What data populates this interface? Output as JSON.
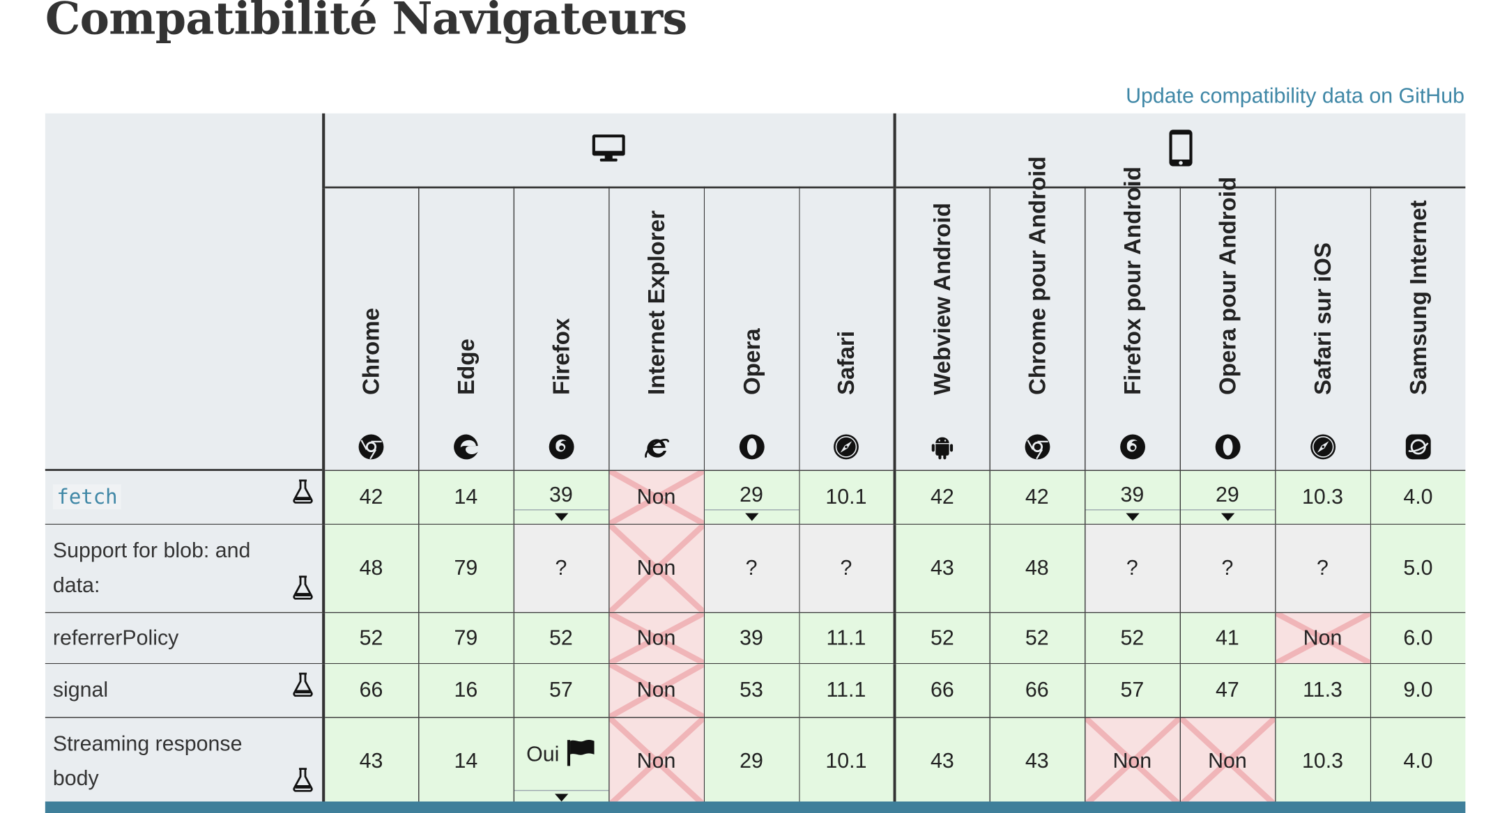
{
  "page": {
    "title": "Compatibilité Navigateurs",
    "github_link": "Update compatibility data on GitHub"
  },
  "groups": [
    {
      "name": "desktop",
      "icon": "desktop-icon"
    },
    {
      "name": "mobile",
      "icon": "mobile-phone-icon"
    }
  ],
  "browsers": [
    {
      "name": "Chrome",
      "icon": "chrome-icon"
    },
    {
      "name": "Edge",
      "icon": "edge-icon"
    },
    {
      "name": "Firefox",
      "icon": "firefox-icon"
    },
    {
      "name": "Internet Explorer",
      "icon": "internet-explorer-icon"
    },
    {
      "name": "Opera",
      "icon": "opera-icon"
    },
    {
      "name": "Safari",
      "icon": "safari-icon"
    },
    {
      "name": "Webview Android",
      "icon": "android-icon"
    },
    {
      "name": "Chrome pour Android",
      "icon": "chrome-icon"
    },
    {
      "name": "Firefox pour Android",
      "icon": "firefox-icon"
    },
    {
      "name": "Opera pour Android",
      "icon": "opera-icon"
    },
    {
      "name": "Safari sur iOS",
      "icon": "safari-icon"
    },
    {
      "name": "Samsung Internet",
      "icon": "samsung-internet-icon"
    }
  ],
  "rows": [
    {
      "feature": "fetch",
      "code": true,
      "experimental": true,
      "cells": [
        {
          "v": "42",
          "s": "yes"
        },
        {
          "v": "14",
          "s": "yes"
        },
        {
          "v": "39",
          "s": "yes",
          "note": true
        },
        {
          "v": "Non",
          "s": "no"
        },
        {
          "v": "29",
          "s": "yes",
          "note": true
        },
        {
          "v": "10.1",
          "s": "yes"
        },
        {
          "v": "42",
          "s": "yes"
        },
        {
          "v": "42",
          "s": "yes"
        },
        {
          "v": "39",
          "s": "yes",
          "note": true
        },
        {
          "v": "29",
          "s": "yes",
          "note": true
        },
        {
          "v": "10.3",
          "s": "yes"
        },
        {
          "v": "4.0",
          "s": "yes"
        }
      ]
    },
    {
      "feature": "Support for blob: and data:",
      "code": false,
      "experimental": true,
      "cells": [
        {
          "v": "48",
          "s": "yes"
        },
        {
          "v": "79",
          "s": "yes"
        },
        {
          "v": "?",
          "s": "unk"
        },
        {
          "v": "Non",
          "s": "no"
        },
        {
          "v": "?",
          "s": "unk"
        },
        {
          "v": "?",
          "s": "unk"
        },
        {
          "v": "43",
          "s": "yes"
        },
        {
          "v": "48",
          "s": "yes"
        },
        {
          "v": "?",
          "s": "unk"
        },
        {
          "v": "?",
          "s": "unk"
        },
        {
          "v": "?",
          "s": "unk"
        },
        {
          "v": "5.0",
          "s": "yes"
        }
      ]
    },
    {
      "feature": "referrerPolicy",
      "code": false,
      "experimental": false,
      "cells": [
        {
          "v": "52",
          "s": "yes"
        },
        {
          "v": "79",
          "s": "yes"
        },
        {
          "v": "52",
          "s": "yes"
        },
        {
          "v": "Non",
          "s": "no"
        },
        {
          "v": "39",
          "s": "yes"
        },
        {
          "v": "11.1",
          "s": "yes"
        },
        {
          "v": "52",
          "s": "yes"
        },
        {
          "v": "52",
          "s": "yes"
        },
        {
          "v": "52",
          "s": "yes"
        },
        {
          "v": "41",
          "s": "yes"
        },
        {
          "v": "Non",
          "s": "no"
        },
        {
          "v": "6.0",
          "s": "yes"
        }
      ]
    },
    {
      "feature": "signal",
      "code": false,
      "experimental": true,
      "cells": [
        {
          "v": "66",
          "s": "yes"
        },
        {
          "v": "16",
          "s": "yes"
        },
        {
          "v": "57",
          "s": "yes"
        },
        {
          "v": "Non",
          "s": "no"
        },
        {
          "v": "53",
          "s": "yes"
        },
        {
          "v": "11.1",
          "s": "yes"
        },
        {
          "v": "66",
          "s": "yes"
        },
        {
          "v": "66",
          "s": "yes"
        },
        {
          "v": "57",
          "s": "yes"
        },
        {
          "v": "47",
          "s": "yes"
        },
        {
          "v": "11.3",
          "s": "yes"
        },
        {
          "v": "9.0",
          "s": "yes"
        }
      ]
    },
    {
      "feature": "Streaming response body",
      "code": false,
      "experimental": true,
      "cells": [
        {
          "v": "43",
          "s": "yes"
        },
        {
          "v": "14",
          "s": "yes"
        },
        {
          "v": "Oui",
          "s": "yes",
          "note": true,
          "flag": true
        },
        {
          "v": "Non",
          "s": "no"
        },
        {
          "v": "29",
          "s": "yes"
        },
        {
          "v": "10.1",
          "s": "yes"
        },
        {
          "v": "43",
          "s": "yes"
        },
        {
          "v": "43",
          "s": "yes"
        },
        {
          "v": "Non",
          "s": "no"
        },
        {
          "v": "Non",
          "s": "no"
        },
        {
          "v": "10.3",
          "s": "yes"
        },
        {
          "v": "4.0",
          "s": "yes"
        }
      ]
    }
  ],
  "colors": {
    "supported": "#e4f8e1",
    "unknown": "#eeeeee",
    "unsupported": "#f8e1e1",
    "header_bg": "#e9edf0",
    "link": "#3f87a6"
  }
}
